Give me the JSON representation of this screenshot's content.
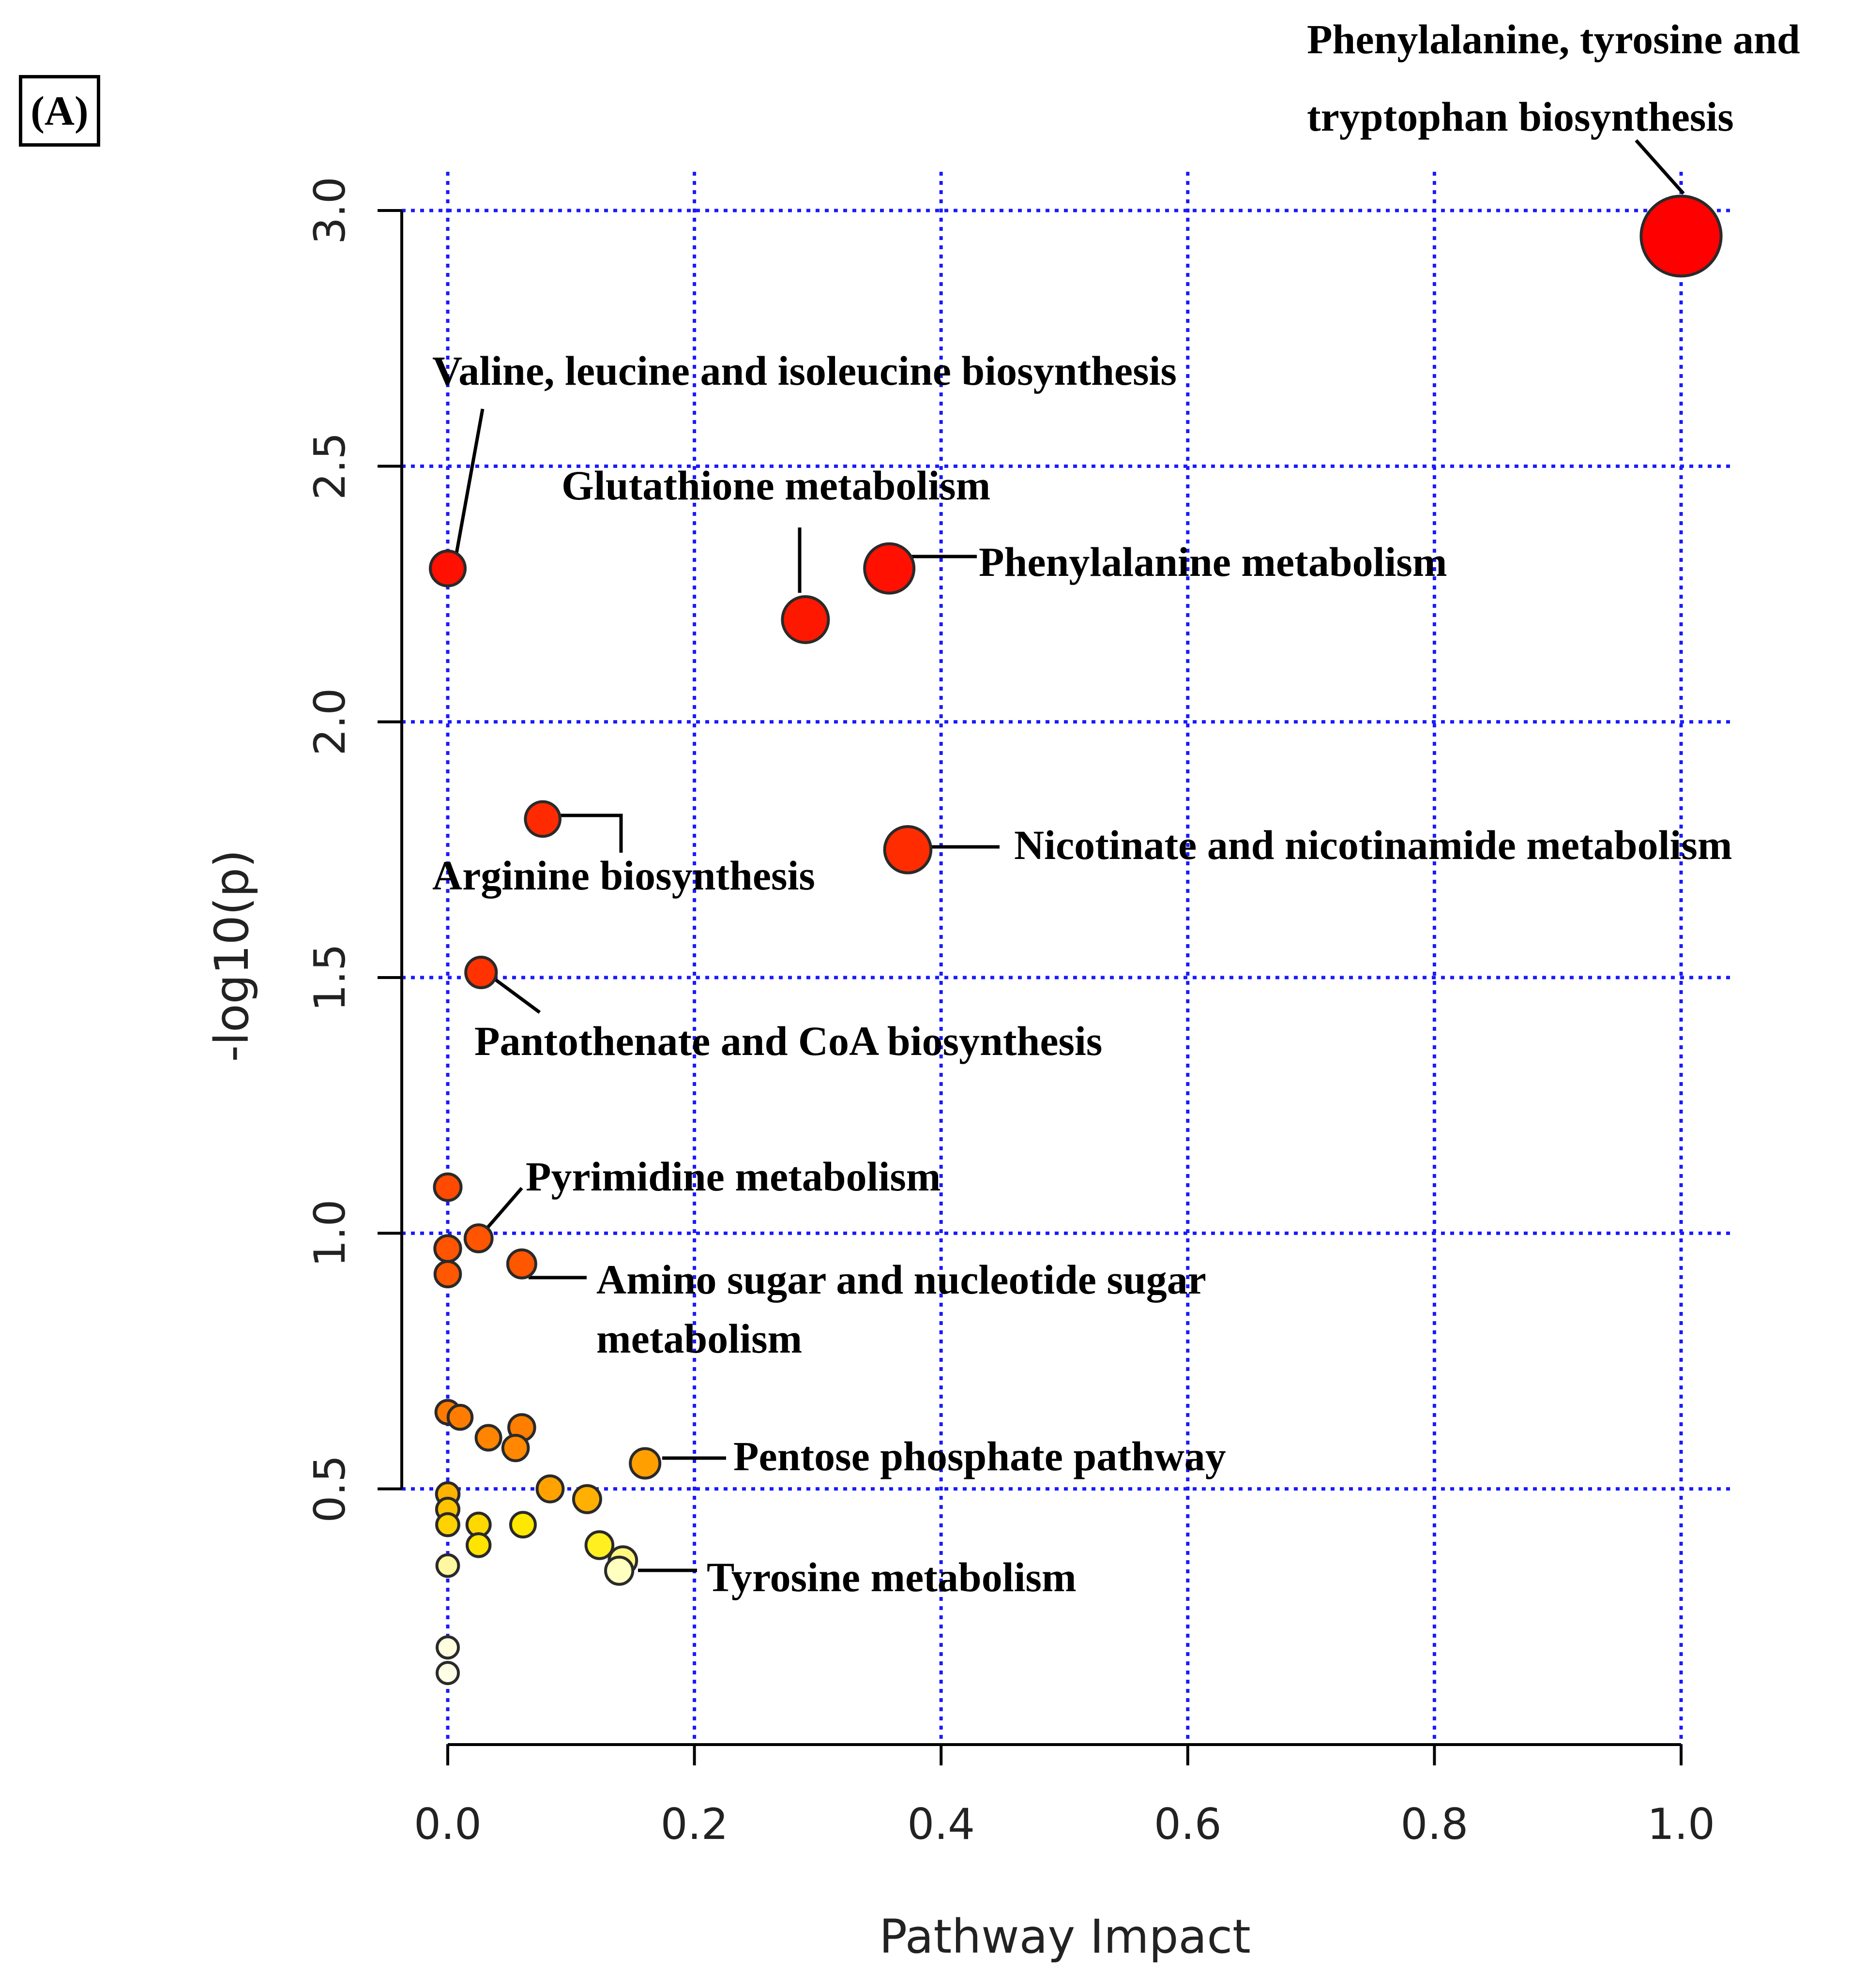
{
  "panel_label": "(A)",
  "chart_data": {
    "type": "scatter",
    "title": "",
    "xlabel": "Pathway Impact",
    "ylabel": "-log10(p)",
    "xlim": [
      0.0,
      1.0
    ],
    "ylim": [
      0.0,
      3.0
    ],
    "xticks": [
      "0.0",
      "0.2",
      "0.4",
      "0.6",
      "0.8",
      "1.0"
    ],
    "yticks": [
      "0.5",
      "1.0",
      "1.5",
      "2.0",
      "2.5",
      "3.0"
    ],
    "grid": true,
    "points": [
      {
        "x": 1.0,
        "y": 2.95,
        "color": "#ff0000",
        "label": "Phenylalanine, tyrosine and tryptophan biosynthesis"
      },
      {
        "x": 0.0,
        "y": 2.3,
        "color": "#ff1000",
        "label": "Valine, leucine and isoleucine biosynthesis"
      },
      {
        "x": 0.29,
        "y": 2.2,
        "color": "#ff1800",
        "label": "Glutathione metabolism"
      },
      {
        "x": 0.358,
        "y": 2.3,
        "color": "#ff1000",
        "label": "Phenylalanine metabolism"
      },
      {
        "x": 0.077,
        "y": 1.81,
        "color": "#ff2a00",
        "label": "Arginine biosynthesis"
      },
      {
        "x": 0.373,
        "y": 1.75,
        "color": "#ff2c00",
        "label": "Nicotinate and nicotinamide metabolism"
      },
      {
        "x": 0.027,
        "y": 1.51,
        "color": "#ff3200",
        "label": "Pantothenate and CoA biosynthesis"
      },
      {
        "x": 0.0,
        "y": 1.09,
        "color": "#ff4a00",
        "label": ""
      },
      {
        "x": 0.025,
        "y": 0.99,
        "color": "#ff5400",
        "label": "Pyrimidine metabolism"
      },
      {
        "x": 0.0,
        "y": 0.97,
        "color": "#ff5400",
        "label": ""
      },
      {
        "x": 0.0,
        "y": 0.92,
        "color": "#ff5800",
        "label": ""
      },
      {
        "x": 0.06,
        "y": 0.94,
        "color": "#ff5600",
        "label": "Amino sugar and nucleotide sugar metabolism"
      },
      {
        "x": 0.0,
        "y": 0.65,
        "color": "#ff7a00",
        "label": ""
      },
      {
        "x": 0.01,
        "y": 0.64,
        "color": "#ff7c00",
        "label": ""
      },
      {
        "x": 0.06,
        "y": 0.62,
        "color": "#ff7e00",
        "label": ""
      },
      {
        "x": 0.033,
        "y": 0.6,
        "color": "#ff8400",
        "label": ""
      },
      {
        "x": 0.055,
        "y": 0.58,
        "color": "#ff8800",
        "label": ""
      },
      {
        "x": 0.16,
        "y": 0.55,
        "color": "#ffa000",
        "label": "Pentose phosphate pathway"
      },
      {
        "x": 0.083,
        "y": 0.5,
        "color": "#ffa200",
        "label": ""
      },
      {
        "x": 0.113,
        "y": 0.48,
        "color": "#ffb000",
        "label": ""
      },
      {
        "x": 0.0,
        "y": 0.49,
        "color": "#ffb200",
        "label": ""
      },
      {
        "x": 0.0,
        "y": 0.46,
        "color": "#ffc400",
        "label": ""
      },
      {
        "x": 0.0,
        "y": 0.43,
        "color": "#ffd200",
        "label": ""
      },
      {
        "x": 0.025,
        "y": 0.43,
        "color": "#ffd800",
        "label": ""
      },
      {
        "x": 0.025,
        "y": 0.39,
        "color": "#ffe400",
        "label": ""
      },
      {
        "x": 0.061,
        "y": 0.43,
        "color": "#ffe800",
        "label": ""
      },
      {
        "x": 0.123,
        "y": 0.39,
        "color": "#ffee20",
        "label": ""
      },
      {
        "x": 0.142,
        "y": 0.36,
        "color": "#fff880",
        "label": ""
      },
      {
        "x": 0.139,
        "y": 0.34,
        "color": "#ffffc0",
        "label": "Tyrosine metabolism"
      },
      {
        "x": 0.0,
        "y": 0.35,
        "color": "#fff8a0",
        "label": ""
      },
      {
        "x": 0.0,
        "y": 0.19,
        "color": "#ffffe0",
        "label": ""
      },
      {
        "x": 0.0,
        "y": 0.14,
        "color": "#ffffe8",
        "label": ""
      }
    ],
    "annotations": [
      {
        "lines": [
          "Phenylalanine, tyrosine and",
          "tryptophan biosynthesis"
        ],
        "point": 0
      },
      {
        "lines": [
          "Valine, leucine and isoleucine biosynthesis"
        ],
        "point": 1
      },
      {
        "lines": [
          "Glutathione metabolism"
        ],
        "point": 2
      },
      {
        "lines": [
          "Phenylalanine metabolism"
        ],
        "point": 3
      },
      {
        "lines": [
          "Arginine biosynthesis"
        ],
        "point": 4
      },
      {
        "lines": [
          "Nicotinate and nicotinamide metabolism"
        ],
        "point": 5
      },
      {
        "lines": [
          "Pantothenate and CoA biosynthesis"
        ],
        "point": 6
      },
      {
        "lines": [
          "Pyrimidine metabolism"
        ],
        "point": 8
      },
      {
        "lines": [
          "Amino sugar and nucleotide sugar",
          "metabolism"
        ],
        "point": 11
      },
      {
        "lines": [
          "Pentose phosphate pathway"
        ],
        "point": 17
      },
      {
        "lines": [
          "Tyrosine metabolism"
        ],
        "point": 28
      }
    ]
  }
}
